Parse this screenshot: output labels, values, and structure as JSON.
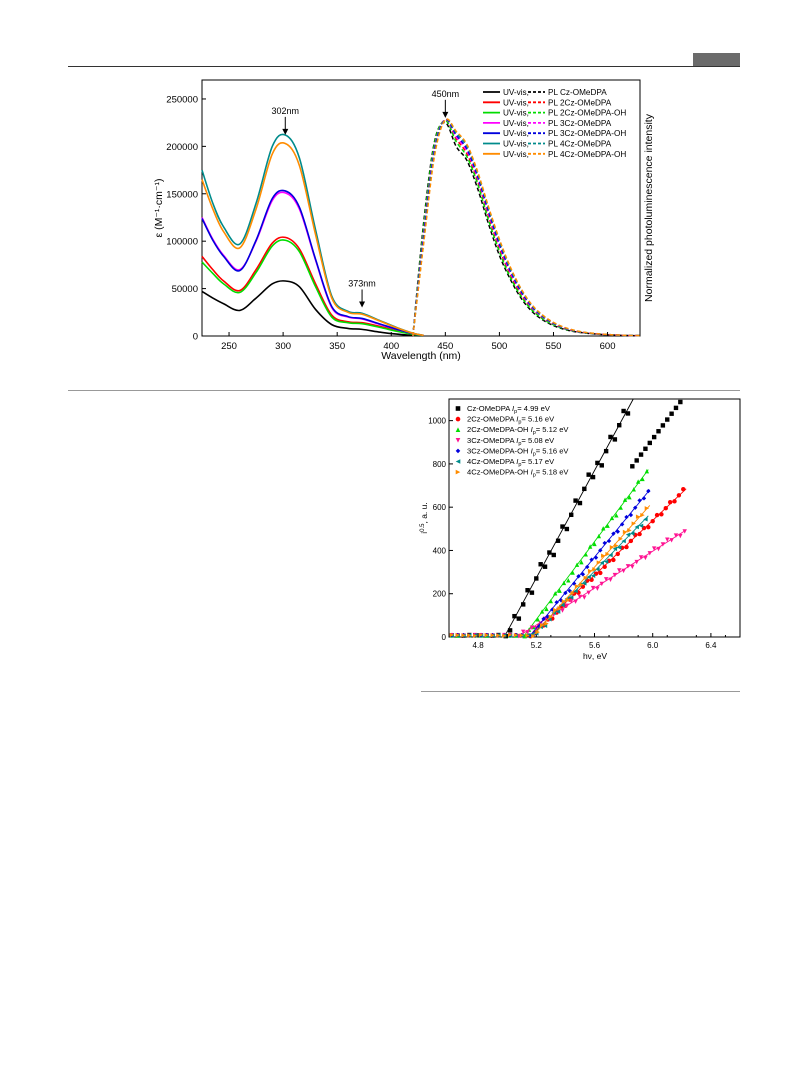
{
  "chart_data": [
    {
      "type": "line",
      "title": "",
      "xlabel": "Wavelength (nm)",
      "ylabel_left": "ε (M⁻¹·cm⁻¹)",
      "ylabel_right": "Normalized photoluminescence intensity",
      "xlim": [
        225,
        630
      ],
      "ylim": [
        0,
        270000
      ],
      "x_ticks": [
        250,
        300,
        350,
        400,
        450,
        500,
        550,
        600
      ],
      "y_ticks": [
        0,
        50000,
        100000,
        150000,
        200000,
        250000
      ],
      "legend_position": "top-right",
      "annotations": [
        {
          "text": "302nm",
          "x": 302,
          "y": 210000
        },
        {
          "text": "373nm",
          "x": 373,
          "y": 28000
        },
        {
          "text": "450nm",
          "x": 450,
          "y": 228000
        }
      ],
      "uv_x": [
        225,
        235,
        245,
        260,
        275,
        290,
        302,
        315,
        330,
        345,
        360,
        373,
        390,
        405,
        420,
        430
      ],
      "pl_x": [
        420,
        430,
        440,
        450,
        460,
        470,
        480,
        490,
        500,
        510,
        520,
        530,
        540,
        550,
        560,
        570,
        580,
        590,
        600,
        610,
        620,
        630
      ],
      "series": [
        {
          "name": "UV-vis, PL Cz-OMeDPA",
          "color": "#000000",
          "uv": [
            47000,
            40000,
            34000,
            27000,
            40000,
            55000,
            58000,
            52000,
            28000,
            12000,
            8000,
            7000,
            4000,
            2000,
            600,
            100
          ],
          "pl": [
            0,
            120000,
            205000,
            225000,
            200000,
            185000,
            155000,
            118000,
            85000,
            60000,
            40000,
            26000,
            17000,
            11000,
            7000,
            4500,
            3000,
            2000,
            1300,
            800,
            500,
            300
          ]
        },
        {
          "name": "UV-vis, PL 2Cz-OMeDPA",
          "color": "#ff0000",
          "uv": [
            84000,
            70000,
            58000,
            48000,
            70000,
            98000,
            104000,
            92000,
            55000,
            22000,
            15000,
            14000,
            10000,
            6000,
            2000,
            400
          ],
          "pl": [
            0,
            110000,
            200000,
            228000,
            208000,
            192000,
            163000,
            126000,
            92000,
            65000,
            44000,
            29000,
            19000,
            12500,
            8000,
            5000,
            3300,
            2200,
            1400,
            900,
            550,
            350
          ]
        },
        {
          "name": "UV-vis, PL 2Cz-OMeDPA-OH",
          "color": "#00dd00",
          "uv": [
            78000,
            66000,
            55000,
            46000,
            67000,
            95000,
            101000,
            89000,
            52000,
            20000,
            14000,
            13000,
            9000,
            5000,
            1800,
            300
          ],
          "pl": [
            0,
            115000,
            203000,
            227000,
            205000,
            189000,
            160000,
            122000,
            89000,
            62000,
            42000,
            27500,
            18000,
            11800,
            7600,
            4800,
            3200,
            2100,
            1350,
            850,
            520,
            320
          ]
        },
        {
          "name": "UV-vis, PL 3Cz-OMeDPA",
          "color": "#ff00ff",
          "uv": [
            125000,
            102000,
            85000,
            70000,
            100000,
            143000,
            151000,
            134000,
            80000,
            30000,
            20000,
            18000,
            12000,
            7000,
            2500,
            500
          ],
          "pl": [
            0,
            108000,
            198000,
            228000,
            210000,
            195000,
            166000,
            129000,
            95000,
            67000,
            46000,
            30000,
            20000,
            13000,
            8300,
            5200,
            3400,
            2300,
            1450,
            920,
            570,
            360
          ]
        },
        {
          "name": "UV-vis, PL 3Cz-OMeDPA-OH",
          "color": "#0000dd",
          "uv": [
            124000,
            101000,
            84000,
            69000,
            101000,
            145000,
            153000,
            136000,
            81000,
            31000,
            20500,
            18500,
            12500,
            7200,
            2600,
            500
          ],
          "pl": [
            0,
            105000,
            196000,
            228000,
            212000,
            197000,
            168000,
            131000,
            97000,
            69000,
            47000,
            31000,
            20500,
            13400,
            8600,
            5400,
            3500,
            2350,
            1500,
            950,
            590,
            370
          ]
        },
        {
          "name": "UV-vis, PL 4Cz-OMeDPA",
          "color": "#008b8b",
          "uv": [
            175000,
            140000,
            115000,
            97000,
            140000,
            200000,
            212000,
            188000,
            112000,
            42000,
            26000,
            24000,
            16000,
            9000,
            3000,
            600
          ],
          "pl": [
            0,
            100000,
            193000,
            228000,
            214000,
            200000,
            171000,
            134000,
            100000,
            71000,
            49000,
            32000,
            21000,
            13800,
            8900,
            5600,
            3600,
            2400,
            1550,
            980,
            610,
            380
          ]
        },
        {
          "name": "UV-vis, PL 4Cz-OMeDPA-OH",
          "color": "#ff8c00",
          "uv": [
            165000,
            134000,
            110000,
            93000,
            134000,
            192000,
            203000,
            180000,
            107000,
            40000,
            25000,
            23000,
            15500,
            8700,
            2900,
            600
          ],
          "pl": [
            0,
            98000,
            190000,
            228000,
            216000,
            202000,
            173000,
            136000,
            102000,
            73000,
            50000,
            33000,
            22000,
            14300,
            9200,
            5800,
            3700,
            2500,
            1600,
            1000,
            630,
            390
          ]
        }
      ]
    },
    {
      "type": "scatter",
      "title": "",
      "xlabel": "hν, eV",
      "ylabel": "i^0.5, a. u.",
      "ylabel_main": "i",
      "ylabel_sup": "0.5",
      "ylabel_rest": ", a. u.",
      "xlim": [
        4.6,
        6.6
      ],
      "ylim": [
        0,
        1100
      ],
      "x_ticks": [
        4.8,
        5.2,
        5.6,
        6.0,
        6.4
      ],
      "y_ticks": [
        0,
        200,
        400,
        600,
        800,
        1000
      ],
      "legend_position": "top-left",
      "series": [
        {
          "name": "Cz-OMeDPA",
          "ip_label": "I",
          "ip_sub": "p",
          "ip_value": "= 4.99 eV",
          "ip": 4.99,
          "color": "#000000",
          "marker": "square",
          "slope": 1255,
          "xmax": 6.2
        },
        {
          "name": "2Cz-OMeDPA",
          "ip_label": "I",
          "ip_sub": "p",
          "ip_value": "= 5.16 eV",
          "ip": 5.16,
          "color": "#ff0000",
          "marker": "circle",
          "slope": 640,
          "xmax": 6.23
        },
        {
          "name": "2Cz-OMeDPA-OH",
          "ip_label": "I",
          "ip_sub": "p",
          "ip_value": "= 5.12 eV",
          "ip": 5.12,
          "color": "#00dd00",
          "marker": "triangle-up",
          "slope": 910,
          "xmax": 5.97
        },
        {
          "name": "3Cz-OMeDPA",
          "ip_label": "I",
          "ip_sub": "p",
          "ip_value": "= 5.08 eV",
          "ip": 5.08,
          "color": "#ff1493",
          "marker": "triangle-down",
          "slope": 430,
          "xmax": 6.23
        },
        {
          "name": "3Cz-OMeDPA-OH",
          "ip_label": "I",
          "ip_sub": "p",
          "ip_value": "= 5.16 eV",
          "ip": 5.16,
          "color": "#0000dd",
          "marker": "diamond",
          "slope": 830,
          "xmax": 5.98
        },
        {
          "name": "4Cz-OMeDPA",
          "ip_label": "I",
          "ip_sub": "p",
          "ip_value": "= 5.17 eV",
          "ip": 5.17,
          "color": "#008b8b",
          "marker": "triangle-left",
          "slope": 700,
          "xmax": 5.97
        },
        {
          "name": "4Cz-OMeDPA-OH",
          "ip_label": "I",
          "ip_sub": "p",
          "ip_value": "= 5.18 eV",
          "ip": 5.18,
          "color": "#ff8c00",
          "marker": "triangle-right",
          "slope": 760,
          "xmax": 5.98
        }
      ]
    }
  ]
}
